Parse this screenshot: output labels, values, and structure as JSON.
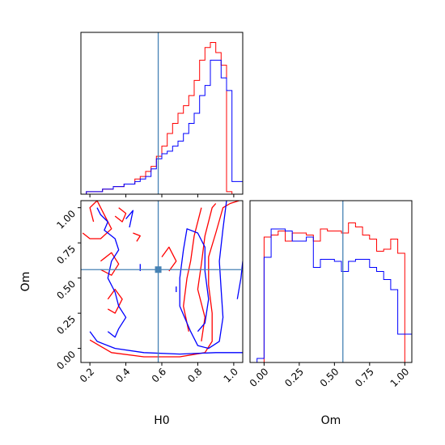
{
  "chart_data": [
    {
      "type": "histogram",
      "panel": "H0 marginal",
      "xlim": [
        0.15,
        1.05
      ],
      "truth": 0.58,
      "grid": false,
      "bin_edges": [
        0.18,
        0.21,
        0.24,
        0.27,
        0.3,
        0.33,
        0.36,
        0.39,
        0.42,
        0.45,
        0.48,
        0.51,
        0.54,
        0.57,
        0.6,
        0.63,
        0.66,
        0.69,
        0.72,
        0.75,
        0.78,
        0.81,
        0.84,
        0.87,
        0.9,
        0.93,
        0.96,
        0.99,
        1.02,
        1.05
      ],
      "series": [
        {
          "color": "#ff0000",
          "values": [
            0.01,
            0.01,
            0.01,
            0.02,
            0.02,
            0.03,
            0.03,
            0.04,
            0.04,
            0.06,
            0.07,
            0.09,
            0.11,
            0.15,
            0.19,
            0.24,
            0.28,
            0.32,
            0.35,
            0.39,
            0.45,
            0.53,
            0.58,
            0.6,
            0.56,
            0.51,
            0.01,
            0,
            0
          ]
        },
        {
          "color": "#0000ff",
          "values": [
            0.01,
            0.01,
            0.01,
            0.02,
            0.02,
            0.03,
            0.03,
            0.04,
            0.04,
            0.05,
            0.06,
            0.07,
            0.1,
            0.14,
            0.16,
            0.17,
            0.19,
            0.21,
            0.24,
            0.28,
            0.32,
            0.39,
            0.43,
            0.53,
            0.53,
            0.46,
            0.41,
            0.05,
            0.05
          ]
        }
      ]
    },
    {
      "type": "contour",
      "panel": "H0 vs Om",
      "xlabel": "H0",
      "ylabel": "Om",
      "xlim": [
        0.15,
        1.05
      ],
      "ylim": [
        -0.1,
        1.05
      ],
      "xticks": [
        "0.2",
        "0.4",
        "0.6",
        "0.8",
        "1.0"
      ],
      "yticks": [
        "0.00",
        "0.25",
        "0.50",
        "0.75",
        "1.00"
      ],
      "truth": {
        "x": 0.58,
        "y": 0.56
      },
      "series": [
        {
          "color": "#ff0000",
          "contours": [
            [
              [
                0.2,
                0.06
              ],
              [
                0.24,
                0.03
              ],
              [
                0.32,
                -0.03
              ],
              [
                0.5,
                -0.06
              ],
              [
                0.7,
                -0.06
              ],
              [
                0.84,
                -0.03
              ],
              [
                0.88,
                0.05
              ],
              [
                0.88,
                0.25
              ],
              [
                0.86,
                0.45
              ],
              [
                0.86,
                0.65
              ],
              [
                0.9,
                0.82
              ],
              [
                0.94,
                1.0
              ],
              [
                0.98,
                1.03
              ],
              [
                1.03,
                1.05
              ]
            ],
            [
              [
                0.82,
                0.05
              ],
              [
                0.84,
                0.22
              ],
              [
                0.8,
                0.42
              ],
              [
                0.82,
                0.6
              ],
              [
                0.84,
                0.8
              ],
              [
                0.88,
                1.0
              ],
              [
                0.9,
                1.03
              ]
            ],
            [
              [
                0.75,
                0.12
              ],
              [
                0.72,
                0.3
              ],
              [
                0.74,
                0.5
              ],
              [
                0.76,
                0.62
              ],
              [
                0.78,
                0.8
              ],
              [
                0.82,
                1.0
              ]
            ],
            [
              [
                0.22,
                0.9
              ],
              [
                0.2,
                1.0
              ],
              [
                0.24,
                1.05
              ],
              [
                0.28,
                0.95
              ],
              [
                0.32,
                0.85
              ],
              [
                0.26,
                0.78
              ],
              [
                0.2,
                0.78
              ],
              [
                0.16,
                0.82
              ]
            ],
            [
              [
                0.26,
                0.62
              ],
              [
                0.32,
                0.68
              ],
              [
                0.36,
                0.6
              ],
              [
                0.32,
                0.52
              ],
              [
                0.26,
                0.56
              ]
            ],
            [
              [
                0.3,
                0.35
              ],
              [
                0.34,
                0.42
              ],
              [
                0.38,
                0.35
              ],
              [
                0.34,
                0.25
              ],
              [
                0.3,
                0.28
              ]
            ],
            [
              [
                0.36,
                1.0
              ],
              [
                0.4,
                0.96
              ],
              [
                0.38,
                0.9
              ],
              [
                0.34,
                0.94
              ]
            ],
            [
              [
                0.44,
                0.82
              ],
              [
                0.48,
                0.8
              ],
              [
                0.46,
                0.76
              ]
            ],
            [
              [
                0.6,
                0.65
              ],
              [
                0.64,
                0.72
              ],
              [
                0.68,
                0.62
              ],
              [
                0.64,
                0.55
              ]
            ]
          ]
        },
        {
          "color": "#0000ff",
          "contours": [
            [
              [
                0.2,
                0.12
              ],
              [
                0.24,
                0.05
              ],
              [
                0.34,
                0.0
              ],
              [
                0.5,
                -0.03
              ],
              [
                0.7,
                -0.04
              ],
              [
                0.9,
                -0.03
              ],
              [
                1.05,
                -0.03
              ]
            ],
            [
              [
                0.96,
                1.05
              ],
              [
                0.94,
                0.85
              ],
              [
                0.92,
                0.62
              ],
              [
                0.93,
                0.42
              ],
              [
                0.94,
                0.22
              ],
              [
                0.92,
                0.05
              ],
              [
                0.86,
                0.0
              ],
              [
                0.8,
                0.02
              ],
              [
                0.76,
                0.12
              ],
              [
                0.7,
                0.3
              ],
              [
                0.7,
                0.5
              ],
              [
                0.72,
                0.7
              ],
              [
                0.74,
                0.85
              ],
              [
                0.8,
                0.82
              ],
              [
                0.84,
                0.72
              ],
              [
                0.84,
                0.55
              ],
              [
                0.86,
                0.35
              ],
              [
                0.84,
                0.18
              ],
              [
                0.8,
                0.12
              ]
            ],
            [
              [
                1.02,
                0.35
              ],
              [
                1.04,
                0.5
              ],
              [
                1.05,
                0.62
              ]
            ],
            [
              [
                0.24,
                1.0
              ],
              [
                0.26,
                0.95
              ],
              [
                0.3,
                0.9
              ],
              [
                0.28,
                0.84
              ],
              [
                0.34,
                0.78
              ],
              [
                0.36,
                0.7
              ],
              [
                0.32,
                0.62
              ],
              [
                0.3,
                0.5
              ],
              [
                0.34,
                0.4
              ],
              [
                0.36,
                0.3
              ],
              [
                0.4,
                0.22
              ],
              [
                0.36,
                0.14
              ],
              [
                0.34,
                0.08
              ],
              [
                0.3,
                0.12
              ]
            ],
            [
              [
                0.4,
                0.92
              ],
              [
                0.44,
                0.98
              ],
              [
                0.42,
                0.86
              ]
            ],
            [
              [
                0.48,
                0.55
              ],
              [
                0.48,
                0.6
              ]
            ],
            [
              [
                0.68,
                0.4
              ],
              [
                0.68,
                0.44
              ]
            ]
          ]
        }
      ]
    },
    {
      "type": "histogram",
      "panel": "Om marginal",
      "xlabel": "Om",
      "xlim": [
        -0.1,
        1.05
      ],
      "xticks": [
        "0.00",
        "0.25",
        "0.50",
        "0.75",
        "1.00"
      ],
      "truth": 0.56,
      "grid": false,
      "bin_edges": [
        -0.1,
        -0.05,
        0.0,
        0.05,
        0.1,
        0.15,
        0.2,
        0.25,
        0.3,
        0.35,
        0.4,
        0.45,
        0.5,
        0.55,
        0.6,
        0.65,
        0.7,
        0.75,
        0.8,
        0.85,
        0.9,
        0.95,
        1.0,
        1.05
      ],
      "series": [
        {
          "color": "#ff0000",
          "values": [
            0,
            0,
            0.62,
            0.63,
            0.65,
            0.6,
            0.64,
            0.64,
            0.63,
            0.6,
            0.66,
            0.65,
            0.65,
            0.64,
            0.69,
            0.67,
            0.63,
            0.61,
            0.55,
            0.56,
            0.61,
            0.54,
            0
          ]
        },
        {
          "color": "#0000ff",
          "values": [
            0,
            0.02,
            0.52,
            0.66,
            0.66,
            0.65,
            0.6,
            0.6,
            0.62,
            0.47,
            0.51,
            0.51,
            0.5,
            0.45,
            0.5,
            0.51,
            0.51,
            0.47,
            0.45,
            0.41,
            0.36,
            0.14,
            0.14
          ]
        }
      ]
    }
  ]
}
